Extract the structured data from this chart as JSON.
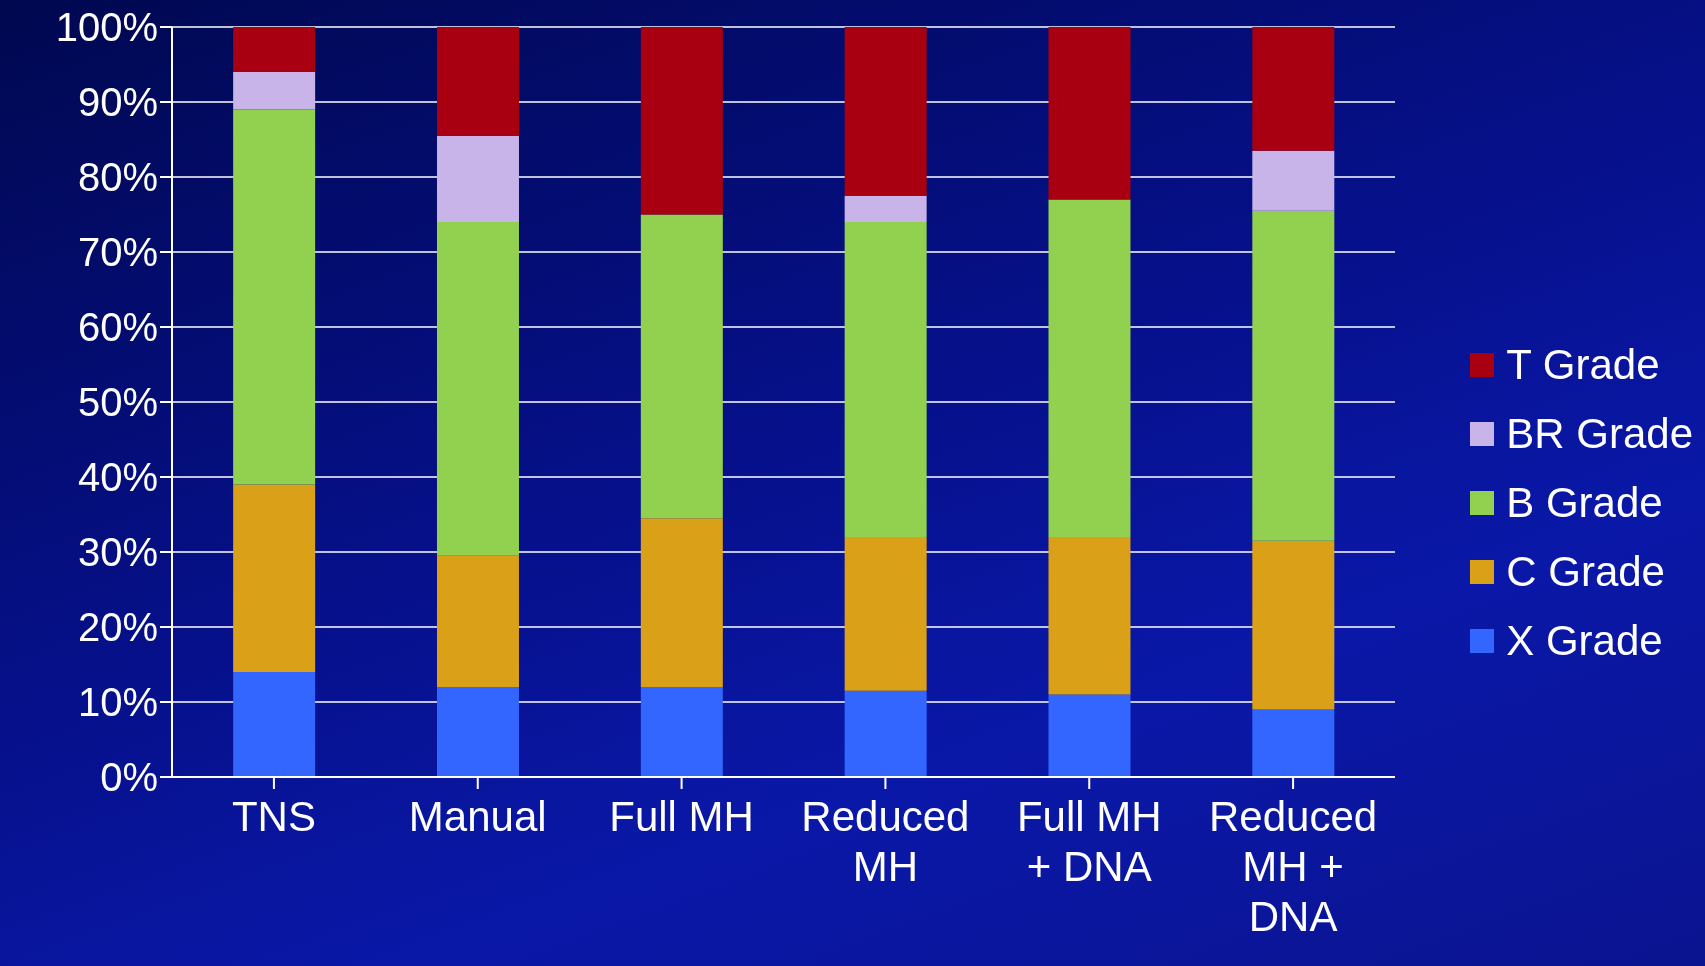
{
  "chart_data": {
    "type": "bar",
    "stacked": true,
    "categories": [
      "TNS",
      "Manual",
      "Full MH",
      "Reduced MH",
      "Full MH + DNA",
      "Reduced MH + DNA"
    ],
    "series": [
      {
        "name": "X Grade",
        "color": "#3366ff",
        "values": [
          14,
          12,
          12,
          11.5,
          11,
          9
        ]
      },
      {
        "name": "C Grade",
        "color": "#d9a018",
        "values": [
          25,
          17.5,
          22.5,
          20.5,
          21,
          22.5
        ]
      },
      {
        "name": "B Grade",
        "color": "#92d050",
        "values": [
          50,
          44.5,
          40.5,
          42,
          45,
          44
        ]
      },
      {
        "name": "BR Grade",
        "color": "#c8b4e8",
        "values": [
          5,
          11.5,
          0,
          3.5,
          0,
          8
        ]
      },
      {
        "name": "T Grade",
        "color": "#a80010",
        "values": [
          6,
          14.5,
          25,
          22.5,
          23,
          16.5
        ]
      }
    ],
    "ylim": [
      0,
      100
    ],
    "yticks": [
      {
        "value": 0,
        "label": "0%"
      },
      {
        "value": 10,
        "label": "10%"
      },
      {
        "value": 20,
        "label": "20%"
      },
      {
        "value": 30,
        "label": "30%"
      },
      {
        "value": 40,
        "label": "40%"
      },
      {
        "value": 50,
        "label": "50%"
      },
      {
        "value": 60,
        "label": "60%"
      },
      {
        "value": 70,
        "label": "70%"
      },
      {
        "value": 80,
        "label": "80%"
      },
      {
        "value": 90,
        "label": "90%"
      },
      {
        "value": 100,
        "label": "100%"
      }
    ],
    "grid": "y",
    "legend": "right"
  }
}
